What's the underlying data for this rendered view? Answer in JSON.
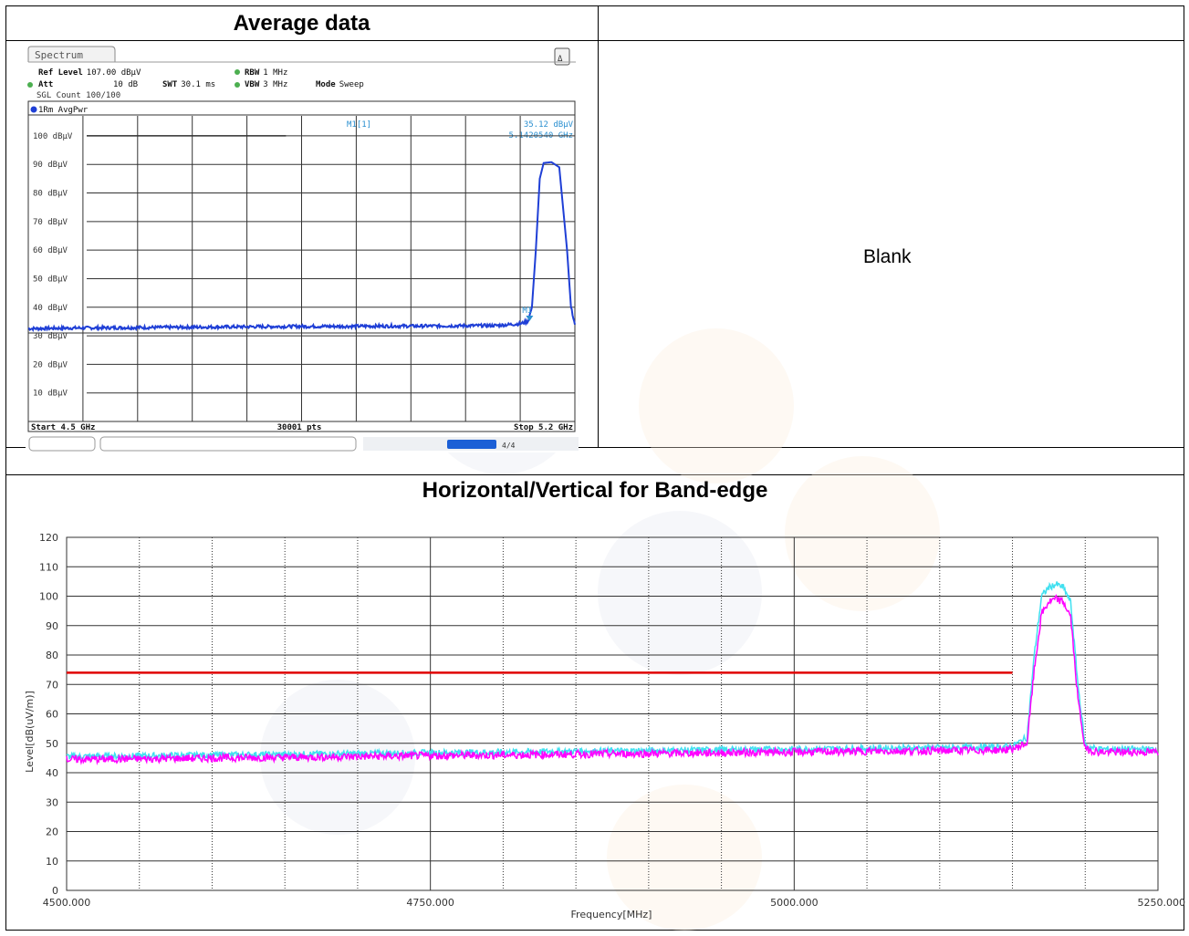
{
  "sections": {
    "top_left_title": "Average data",
    "top_right_blank": "Blank",
    "bottom_title": "Horizontal/Vertical for Band-edge"
  },
  "analyzer": {
    "tab": "Spectrum",
    "ref_level_label": "Ref Level",
    "ref_level_value": "107.00 dBµV",
    "att_label": "Att",
    "att_value": "10 dB",
    "swt_label": "SWT",
    "swt_value": "30.1 ms",
    "rbw_label": "RBW",
    "rbw_value": "1 MHz",
    "vbw_label": "VBW",
    "vbw_value": "3 MHz",
    "mode_label": "Mode",
    "mode_value": "Sweep",
    "sgl_count": "SGL Count 100/100",
    "trace_label": "1Rm AvgPwr",
    "marker_name": "M1[1]",
    "marker_level": "35.12 dBµV",
    "marker_freq": "5.1420540 GHz",
    "marker_tag": "M1",
    "start": "Start 4.5 GHz",
    "points": "30001 pts",
    "stop": "Stop 5.2 GHz",
    "status_text": "4/4",
    "colors": {
      "trace": "#1f3fd6",
      "marker": "#2a8fd0"
    }
  },
  "chart_data": [
    {
      "type": "line",
      "title": "",
      "xlabel": "",
      "ylabel": "",
      "xlim": [
        4.5,
        5.2
      ],
      "ylim": [
        0,
        107
      ],
      "ytick_labels": [
        "100 dBµV",
        "90 dBµV",
        "80 dBµV",
        "70 dBµV",
        "60 dBµV",
        "50 dBµV",
        "40 dBµV",
        "30 dBµV",
        "20 dBµV",
        "10 dBµV"
      ],
      "ytick_values": [
        100,
        90,
        80,
        70,
        60,
        50,
        40,
        30,
        20,
        10
      ],
      "reference_line": {
        "y": 100
      },
      "threshold_line": {
        "y": 31
      },
      "grid": true,
      "series": [
        {
          "x": [
            4.5,
            4.55,
            4.6,
            4.65,
            4.7,
            4.75,
            4.8,
            4.85,
            4.9,
            4.95,
            5.0,
            5.05,
            5.1,
            5.13,
            5.14,
            5.145,
            5.15,
            5.155,
            5.16,
            5.17,
            5.18,
            5.19,
            5.195,
            5.2
          ],
          "y": [
            32.5,
            32.7,
            32.8,
            32.9,
            33.0,
            33.1,
            33.2,
            33.3,
            33.3,
            33.4,
            33.4,
            33.5,
            33.6,
            34.2,
            35.1,
            40,
            60,
            85,
            90.5,
            90.8,
            89,
            60,
            40,
            34
          ]
        }
      ]
    },
    {
      "type": "line",
      "title": "",
      "xlabel": "Frequency[MHz]",
      "ylabel": "Level[dB(uV/m)]",
      "xlim": [
        4500,
        5250
      ],
      "ylim": [
        0,
        120
      ],
      "xticks": [
        "4500.000",
        "4750.000",
        "5000.000",
        "5250.000"
      ],
      "xtick_values": [
        4500,
        4750,
        5000,
        5250
      ],
      "yticks": [
        "120",
        "110",
        "100",
        "90",
        "80",
        "70",
        "60",
        "50",
        "40",
        "30",
        "20",
        "10",
        "0"
      ],
      "ytick_values": [
        120,
        110,
        100,
        90,
        80,
        70,
        60,
        50,
        40,
        30,
        20,
        10,
        0
      ],
      "grid": true,
      "colors": {
        "limit": "#e00000",
        "horizontal": "#40e0f0",
        "vertical": "#ff00ff"
      },
      "limit_line": {
        "x": [
          4500,
          5150
        ],
        "y": [
          74,
          74
        ]
      },
      "series": [
        {
          "x": [
            4500,
            4550,
            4600,
            4650,
            4700,
            4750,
            4800,
            4850,
            4900,
            4950,
            5000,
            5050,
            5100,
            5140,
            5150,
            5160,
            5165,
            5170,
            5175,
            5180,
            5185,
            5190,
            5195,
            5200,
            5210,
            5250
          ],
          "y": [
            45.5,
            45.7,
            46,
            46.2,
            46.5,
            46.8,
            47,
            47.3,
            47.5,
            47.8,
            48,
            48.3,
            48.5,
            48.7,
            49,
            52,
            80,
            100,
            103,
            104,
            103,
            98,
            70,
            49,
            48,
            48
          ]
        },
        {
          "x": [
            4500,
            4550,
            4600,
            4650,
            4700,
            4750,
            4800,
            4850,
            4900,
            4950,
            5000,
            5050,
            5100,
            5140,
            5150,
            5160,
            5165,
            5170,
            5175,
            5180,
            5185,
            5190,
            5195,
            5200,
            5210,
            5250
          ],
          "y": [
            44.5,
            44.7,
            45,
            45.2,
            45.5,
            45.8,
            46,
            46.3,
            46.5,
            46.8,
            47,
            47.3,
            47.5,
            47.7,
            48,
            50,
            75,
            94,
            98,
            99,
            98,
            93,
            65,
            48,
            47,
            47
          ]
        }
      ]
    }
  ]
}
